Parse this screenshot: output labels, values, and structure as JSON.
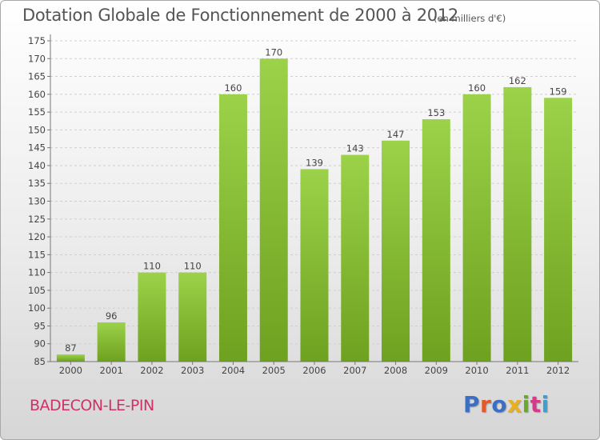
{
  "header": {
    "title": "Dotation Globale de Fonctionnement de 2000 à 2012",
    "unit": "(en milliers d'€)"
  },
  "footer": {
    "commune": "BADECON-LE-PIN",
    "logo_text": "Proxiti",
    "logo_colors": [
      "#3a6fc4",
      "#e05a2a",
      "#3a6fc4",
      "#e8b020",
      "#6aaa2a",
      "#d43a8a",
      "#3aa0d8"
    ]
  },
  "colors": {
    "bar_light": "#9cd24a",
    "bar_dark": "#6ea11f",
    "axis": "#777777",
    "grid": "#cfcfcf"
  },
  "chart_data": {
    "type": "bar",
    "title": "Dotation Globale de Fonctionnement de 2000 à 2012",
    "subtitle": "(en milliers d'€)",
    "xlabel": "",
    "ylabel": "",
    "categories": [
      "2000",
      "2001",
      "2002",
      "2003",
      "2004",
      "2005",
      "2006",
      "2007",
      "2008",
      "2009",
      "2010",
      "2011",
      "2012"
    ],
    "values": [
      87,
      96,
      110,
      110,
      160,
      170,
      139,
      143,
      147,
      153,
      160,
      162,
      159
    ],
    "value_labels": [
      "87",
      "96",
      "110",
      "110",
      "160",
      "170",
      "139",
      "143",
      "147",
      "153",
      "160",
      "162",
      "159"
    ],
    "ylim": [
      85,
      175
    ],
    "yticks": [
      "85",
      "90",
      "95",
      "100",
      "105",
      "110",
      "115",
      "120",
      "125",
      "130",
      "135",
      "140",
      "145",
      "150",
      "155",
      "160",
      "165",
      "170",
      "175"
    ],
    "grid": true,
    "legend": "none"
  }
}
